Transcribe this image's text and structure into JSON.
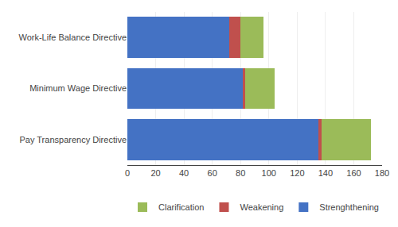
{
  "chart_data": {
    "type": "bar",
    "orientation": "horizontal",
    "stacked": true,
    "categories": [
      "Pay Transparency Directive",
      "Minimum Wage Directive",
      "Work-Life Balance Directive"
    ],
    "series": [
      {
        "name": "Strenghthening",
        "color": "#4472C4",
        "values": [
          135,
          82,
          72
        ]
      },
      {
        "name": "Weakening",
        "color": "#C0504D",
        "values": [
          2,
          1,
          8
        ]
      },
      {
        "name": "Clarification",
        "color": "#9BBB59",
        "values": [
          35,
          21,
          16
        ]
      }
    ],
    "xlim": [
      0,
      180
    ],
    "xticks": [
      0,
      20,
      40,
      60,
      80,
      100,
      120,
      140,
      160,
      180
    ],
    "grid": true,
    "legend": "bottom"
  }
}
